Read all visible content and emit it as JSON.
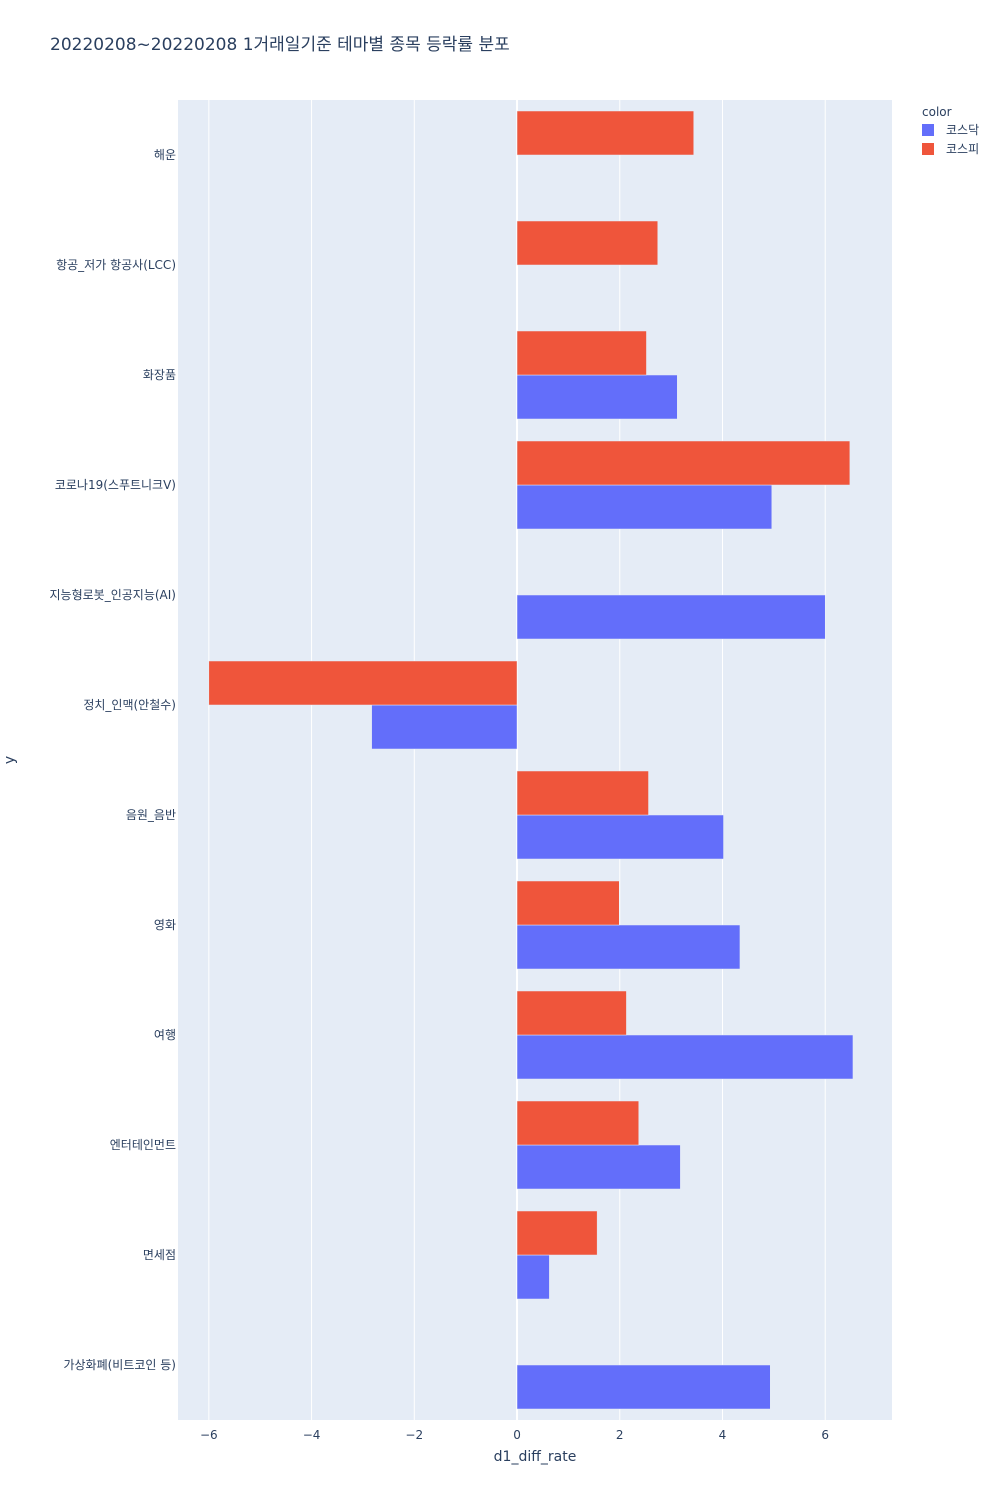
{
  "chart_data": {
    "type": "bar",
    "orientation": "horizontal",
    "barmode": "group",
    "title": "20220208~20220208 1거래일기준 테마별 종목 등락률 분포",
    "xlabel": "d1_diff_rate",
    "ylabel": "y",
    "xlim": [
      -6.6,
      7.3
    ],
    "xticks": [
      -6,
      -4,
      -2,
      0,
      2,
      4,
      6
    ],
    "xtick_labels": [
      "−6",
      "−4",
      "−2",
      "0",
      "2",
      "4",
      "6"
    ],
    "grid": true,
    "legend": {
      "title": "color",
      "position": "top-right"
    },
    "categories": [
      "해운",
      "항공_저가 항공사(LCC)",
      "화장품",
      "코로나19(스푸트니크V)",
      "지능형로봇_인공지능(AI)",
      "정치_인맥(안철수)",
      "음원_음반",
      "영화",
      "여행",
      "엔터테인먼트",
      "면세점",
      "가상화폐(비트코인 등)"
    ],
    "series": [
      {
        "name": "코스닥",
        "color": "#636efa",
        "values": [
          null,
          null,
          3.12,
          4.96,
          6.0,
          -2.83,
          4.02,
          4.34,
          6.54,
          3.18,
          0.63,
          4.93
        ]
      },
      {
        "name": "코스피",
        "color": "#ef553b",
        "values": [
          3.44,
          2.74,
          2.52,
          6.48,
          null,
          -6.0,
          2.56,
          1.99,
          2.13,
          2.37,
          1.56,
          null
        ]
      }
    ]
  }
}
